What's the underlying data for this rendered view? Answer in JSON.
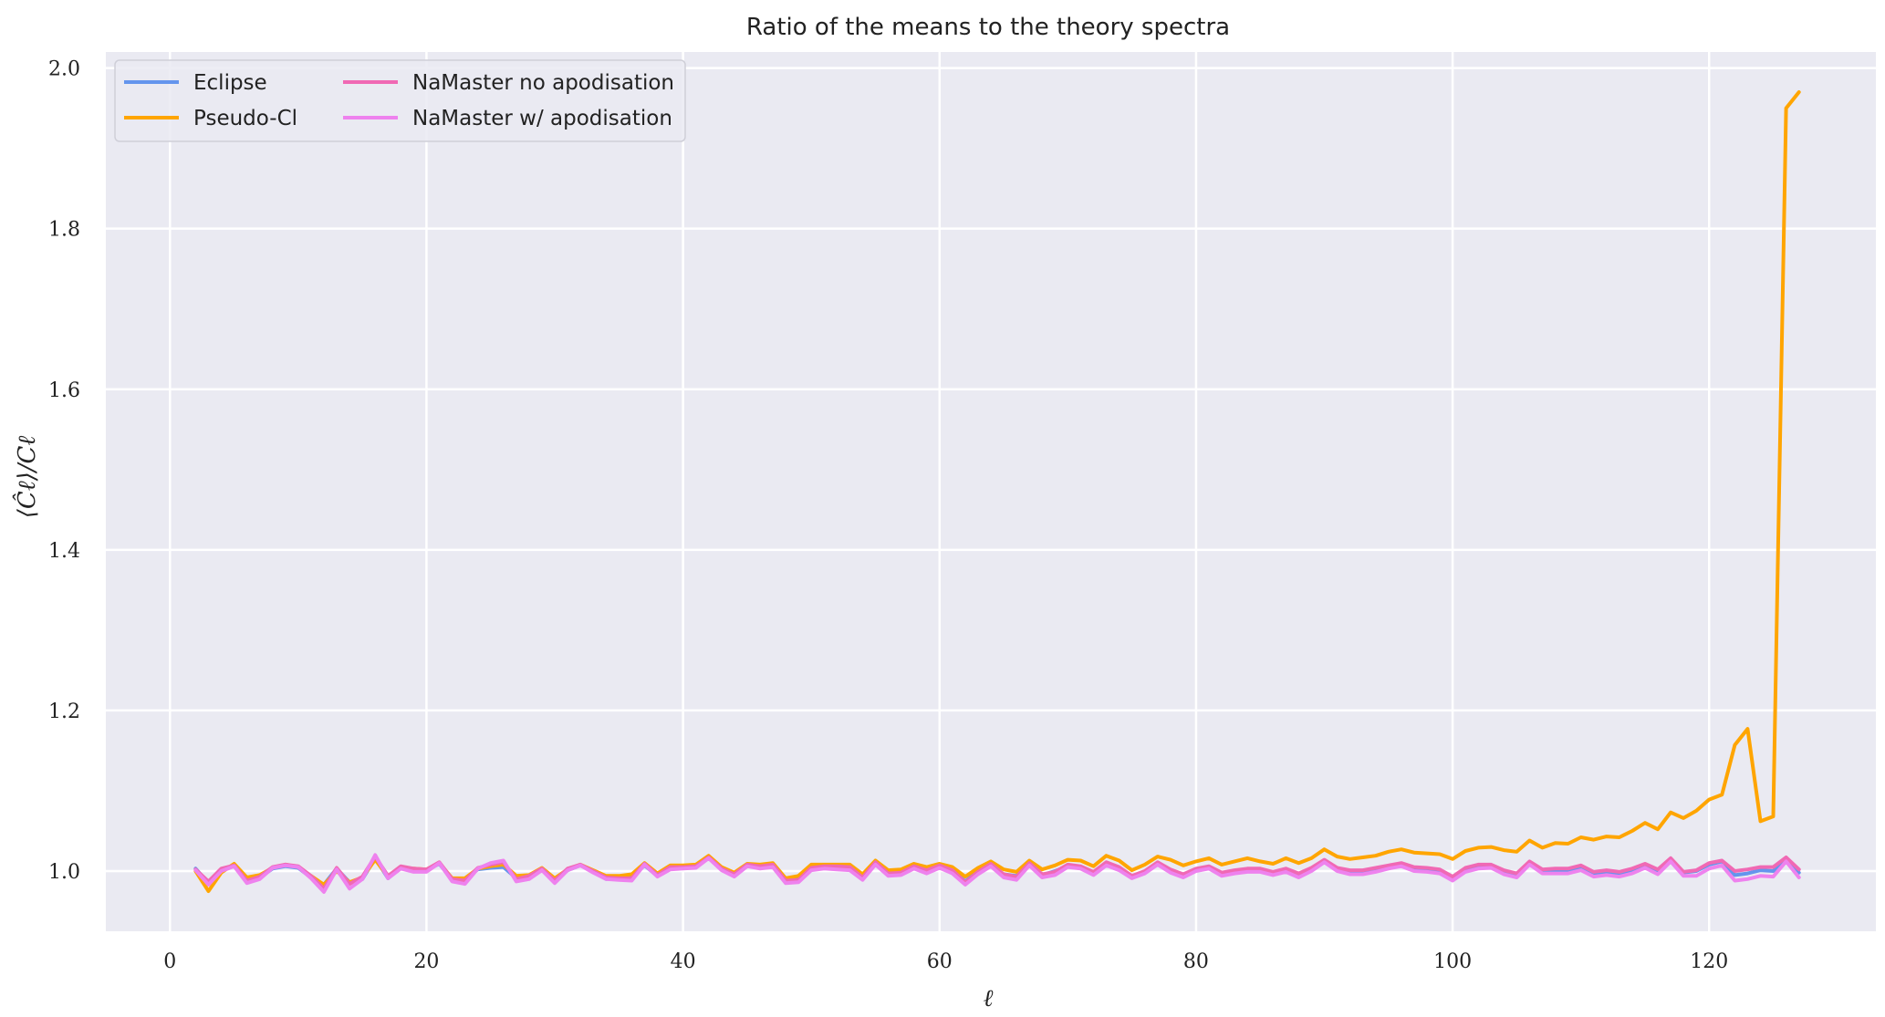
{
  "chart_data": {
    "type": "line",
    "title": "Ratio of the means to the theory spectra",
    "xlabel": "ℓ",
    "ylabel": "⟨Ĉℓ⟩/Cℓ",
    "xlim": [
      -5,
      133
    ],
    "ylim": [
      0.925,
      2.02
    ],
    "xticks": [
      0,
      20,
      40,
      60,
      80,
      100,
      120
    ],
    "yticks": [
      1.0,
      1.2,
      1.4,
      1.6,
      1.8,
      2.0
    ],
    "grid": true,
    "legend": "top-left",
    "x_start": 2,
    "series": [
      {
        "name": "Eclipse",
        "color": "#6495ED",
        "values": [
          1.003,
          0.985,
          1.002,
          1.006,
          0.989,
          0.992,
          1.003,
          1.006,
          1.004,
          0.992,
          0.983,
          1.003,
          0.986,
          0.99,
          1.016,
          0.991,
          1.004,
          1.002,
          1.001,
          1.009,
          0.989,
          0.99,
          1.002,
          1.004,
          1.005,
          0.991,
          0.993,
          1.001,
          0.989,
          1.001,
          1.007,
          0.999,
          0.99,
          0.991,
          0.992,
          1.007,
          0.994,
          1.004,
          1.005,
          1.006,
          1.016,
          1.002,
          0.995,
          1.006,
          1.005,
          1.006,
          0.989,
          0.99,
          1.003,
          1.005,
          1.005,
          1.004,
          0.993,
          1.01,
          0.997,
          0.999,
          1.005,
          1.001,
          1.006,
          1.001,
          0.987,
          1.0,
          1.007,
          0.996,
          0.994,
          1.008,
          0.995,
          1.0,
          1.006,
          1.005,
          0.998,
          1.009,
          1.003,
          0.993,
          0.999,
          1.008,
          1.0,
          0.995,
          1.002,
          1.005,
          0.996,
          1.0,
          1.001,
          1.002,
          0.998,
          1.001,
          0.996,
          1.002,
          1.012,
          1.002,
          0.999,
          1.0,
          1.002,
          1.005,
          1.008,
          1.003,
          1.002,
          1.0,
          0.992,
          1.002,
          1.006,
          1.006,
          0.999,
          0.996,
          1.011,
          1.0,
          1.001,
          1.001,
          1.005,
          0.996,
          0.999,
          0.997,
          1.001,
          1.007,
          1.0,
          1.015,
          0.998,
          1.0,
          1.008,
          1.012,
          0.995,
          0.997,
          1.001,
          1.0,
          1.012,
          0.998
        ]
      },
      {
        "name": "Pseudo-Cl",
        "color": "#FFA500",
        "values": [
          1.0,
          0.975,
          0.998,
          1.009,
          0.992,
          0.995,
          1.004,
          1.008,
          1.005,
          0.994,
          0.983,
          1.0,
          0.986,
          0.992,
          1.014,
          0.993,
          1.005,
          1.003,
          1.002,
          1.01,
          0.991,
          0.991,
          1.003,
          1.006,
          1.008,
          0.994,
          0.995,
          1.004,
          0.991,
          1.002,
          1.008,
          1.001,
          0.994,
          0.994,
          0.996,
          1.01,
          0.997,
          1.007,
          1.007,
          1.008,
          1.019,
          1.005,
          0.998,
          1.009,
          1.008,
          1.01,
          0.991,
          0.994,
          1.008,
          1.008,
          1.008,
          1.008,
          0.996,
          1.013,
          1.001,
          1.002,
          1.009,
          1.005,
          1.009,
          1.005,
          0.993,
          1.004,
          1.012,
          1.002,
          0.999,
          1.013,
          1.002,
          1.007,
          1.014,
          1.013,
          1.006,
          1.019,
          1.013,
          1.001,
          1.008,
          1.018,
          1.014,
          1.007,
          1.012,
          1.016,
          1.008,
          1.012,
          1.016,
          1.012,
          1.009,
          1.016,
          1.01,
          1.016,
          1.027,
          1.018,
          1.015,
          1.017,
          1.019,
          1.024,
          1.027,
          1.023,
          1.022,
          1.021,
          1.015,
          1.025,
          1.029,
          1.03,
          1.026,
          1.024,
          1.038,
          1.029,
          1.035,
          1.034,
          1.042,
          1.039,
          1.043,
          1.042,
          1.05,
          1.06,
          1.052,
          1.073,
          1.066,
          1.075,
          1.089,
          1.095,
          1.157,
          1.177,
          1.062,
          1.068,
          1.95,
          1.97
        ]
      },
      {
        "name": "NaMaster no apodisation",
        "color": "#F069B4",
        "values": [
          1.002,
          0.987,
          1.003,
          1.007,
          0.988,
          0.993,
          1.005,
          1.008,
          1.006,
          0.994,
          0.978,
          1.004,
          0.984,
          0.993,
          1.018,
          0.994,
          1.006,
          1.003,
          1.002,
          1.011,
          0.99,
          0.988,
          1.004,
          1.008,
          1.011,
          0.99,
          0.994,
          1.003,
          0.988,
          1.003,
          1.008,
          1.0,
          0.992,
          0.991,
          0.991,
          1.009,
          0.995,
          1.005,
          1.005,
          1.006,
          1.017,
          1.003,
          0.996,
          1.008,
          1.006,
          1.008,
          0.988,
          0.989,
          1.004,
          1.006,
          1.006,
          1.005,
          0.992,
          1.011,
          0.997,
          0.998,
          1.006,
          1.001,
          1.007,
          1.001,
          0.986,
          0.999,
          1.009,
          0.996,
          0.993,
          1.01,
          0.996,
          0.999,
          1.008,
          1.006,
          0.999,
          1.011,
          1.005,
          0.994,
          1.0,
          1.011,
          1.002,
          0.996,
          1.003,
          1.006,
          0.998,
          1.001,
          1.003,
          1.003,
          0.999,
          1.003,
          0.997,
          1.004,
          1.014,
          1.004,
          1.001,
          1.001,
          1.004,
          1.007,
          1.01,
          1.005,
          1.004,
          1.002,
          0.993,
          1.004,
          1.008,
          1.008,
          1.001,
          0.997,
          1.012,
          1.002,
          1.003,
          1.003,
          1.007,
          0.999,
          1.001,
          0.999,
          1.003,
          1.009,
          1.002,
          1.016,
          0.999,
          1.001,
          1.01,
          1.013,
          1.0,
          1.002,
          1.005,
          1.005,
          1.017,
          1.002
        ]
      },
      {
        "name": "NaMaster w/ apodisation",
        "color": "#EE82EE",
        "values": [
          1.001,
          0.983,
          1.0,
          1.006,
          0.985,
          0.99,
          1.004,
          1.007,
          1.005,
          0.991,
          0.974,
          1.002,
          0.978,
          0.99,
          1.02,
          0.991,
          1.003,
          0.999,
          0.999,
          1.01,
          0.987,
          0.984,
          1.003,
          1.01,
          1.013,
          0.987,
          0.99,
          1.001,
          0.985,
          1.001,
          1.007,
          0.998,
          0.99,
          0.989,
          0.988,
          1.008,
          0.993,
          1.002,
          1.003,
          1.004,
          1.016,
          1.001,
          0.993,
          1.006,
          1.003,
          1.005,
          0.985,
          0.986,
          1.001,
          1.003,
          1.002,
          1.001,
          0.989,
          1.008,
          0.994,
          0.995,
          1.003,
          0.997,
          1.004,
          0.997,
          0.983,
          0.996,
          1.006,
          0.992,
          0.989,
          1.007,
          0.992,
          0.995,
          1.005,
          1.003,
          0.995,
          1.007,
          1.001,
          0.991,
          0.997,
          1.008,
          0.998,
          0.992,
          1.0,
          1.003,
          0.994,
          0.997,
          0.999,
          0.999,
          0.995,
          0.999,
          0.992,
          1.0,
          1.011,
          1.0,
          0.996,
          0.996,
          0.999,
          1.003,
          1.006,
          1.0,
          0.999,
          0.997,
          0.988,
          0.999,
          1.003,
          1.004,
          0.996,
          0.992,
          1.008,
          0.997,
          0.997,
          0.997,
          1.001,
          0.993,
          0.995,
          0.993,
          0.997,
          1.004,
          0.996,
          1.012,
          0.994,
          0.994,
          1.003,
          1.007,
          0.988,
          0.99,
          0.994,
          0.993,
          1.012,
          0.992
        ]
      }
    ]
  }
}
